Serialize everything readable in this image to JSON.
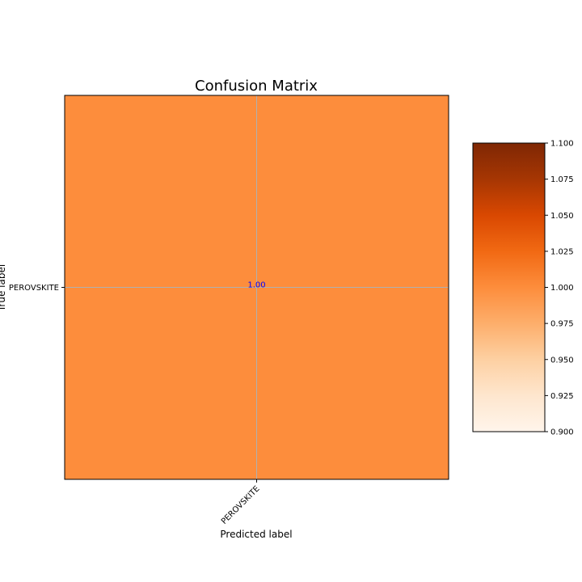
{
  "chart_data": {
    "type": "heatmap",
    "title": "Confusion Matrix",
    "xlabel": "Predicted label",
    "ylabel": "True label",
    "x_categories": [
      "PEROVSKITE"
    ],
    "y_categories": [
      "PEROVSKITE"
    ],
    "values": [
      [
        1.0
      ]
    ],
    "cell_labels": [
      [
        "1.00"
      ]
    ],
    "cell_label_color": "#0000ff",
    "cell_color": "#fd8d3c",
    "grid": true,
    "grid_color": "#b0b0b0",
    "colormap": "Oranges",
    "colorbar": {
      "range": [
        0.9,
        1.1
      ],
      "ticks": [
        0.9,
        0.925,
        0.95,
        0.975,
        1.0,
        1.025,
        1.05,
        1.075,
        1.1
      ],
      "tick_labels": [
        "0.900",
        "0.925",
        "0.950",
        "0.975",
        "1.000",
        "1.025",
        "1.050",
        "1.075",
        "1.100"
      ],
      "stops": [
        {
          "value": 0.9,
          "color": "#fff5eb"
        },
        {
          "value": 0.925,
          "color": "#fee6ce"
        },
        {
          "value": 0.95,
          "color": "#fdd0a2"
        },
        {
          "value": 0.975,
          "color": "#fdae6b"
        },
        {
          "value": 1.0,
          "color": "#fd8d3c"
        },
        {
          "value": 1.025,
          "color": "#f16913"
        },
        {
          "value": 1.05,
          "color": "#d94801"
        },
        {
          "value": 1.075,
          "color": "#a63603"
        },
        {
          "value": 1.1,
          "color": "#7f2704"
        }
      ]
    }
  }
}
